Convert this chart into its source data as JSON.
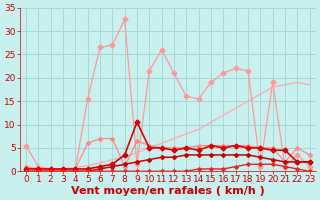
{
  "title": "",
  "xlabel": "Vent moyen/en rafales ( km/h )",
  "ylabel": "",
  "bg_color": "#c8f0ee",
  "grid_color": "#a8d8d4",
  "xlim": [
    -0.5,
    23.5
  ],
  "ylim": [
    0,
    35
  ],
  "xticks": [
    0,
    1,
    2,
    3,
    4,
    5,
    6,
    7,
    8,
    9,
    10,
    11,
    12,
    13,
    14,
    15,
    16,
    17,
    18,
    19,
    20,
    21,
    22,
    23
  ],
  "yticks": [
    0,
    5,
    10,
    15,
    20,
    25,
    30,
    35
  ],
  "series": [
    {
      "x": [
        0,
        1,
        2,
        3,
        4,
        5,
        6,
        7,
        8,
        9,
        10,
        11,
        12,
        13,
        14,
        15,
        16,
        17,
        18,
        19,
        20,
        21,
        22,
        23
      ],
      "y": [
        5.5,
        1.0,
        0.5,
        0.5,
        0.5,
        15.5,
        26.5,
        27.0,
        32.5,
        1.5,
        21.5,
        26.0,
        21.0,
        16.0,
        15.5,
        19.0,
        21.0,
        22.0,
        21.5,
        1.0,
        19.0,
        1.0,
        3.5,
        1.0
      ],
      "color": "#ff9999",
      "lw": 0.9,
      "marker": "D",
      "ms": 2.5,
      "zorder": 3
    },
    {
      "x": [
        0,
        1,
        2,
        3,
        4,
        5,
        6,
        7,
        8,
        9,
        10,
        11,
        12,
        13,
        14,
        15,
        16,
        17,
        18,
        19,
        20,
        21,
        22,
        23
      ],
      "y": [
        0.0,
        0.0,
        0.2,
        0.5,
        0.8,
        1.2,
        1.8,
        2.5,
        3.0,
        4.0,
        5.0,
        6.0,
        7.0,
        8.0,
        9.0,
        10.5,
        12.0,
        13.5,
        15.0,
        16.5,
        18.0,
        18.5,
        19.0,
        18.5
      ],
      "color": "#ffaaaa",
      "lw": 0.9,
      "marker": null,
      "ms": 0,
      "zorder": 2
    },
    {
      "x": [
        0,
        1,
        2,
        3,
        4,
        5,
        6,
        7,
        8,
        9,
        10,
        11,
        12,
        13,
        14,
        15,
        16,
        17,
        18,
        19,
        20,
        21,
        22,
        23
      ],
      "y": [
        1.0,
        0.5,
        0.5,
        0.5,
        0.5,
        6.0,
        7.0,
        7.0,
        1.0,
        6.5,
        5.5,
        5.0,
        5.0,
        5.0,
        5.5,
        5.5,
        5.5,
        5.5,
        5.5,
        5.0,
        5.0,
        2.0,
        5.0,
        3.5
      ],
      "color": "#ff8888",
      "lw": 0.9,
      "marker": "D",
      "ms": 2.0,
      "zorder": 3
    },
    {
      "x": [
        0,
        1,
        2,
        3,
        4,
        5,
        6,
        7,
        8,
        9,
        10,
        11,
        12,
        13,
        14,
        15,
        16,
        17,
        18,
        19,
        20,
        21,
        22,
        23
      ],
      "y": [
        0.5,
        0.5,
        0.5,
        0.5,
        0.5,
        0.5,
        1.0,
        1.5,
        3.5,
        10.5,
        5.0,
        5.0,
        4.5,
        5.0,
        4.5,
        5.5,
        5.0,
        5.5,
        5.0,
        5.0,
        4.5,
        4.5,
        2.0,
        2.0
      ],
      "color": "#dd0000",
      "lw": 1.2,
      "marker": "D",
      "ms": 2.5,
      "zorder": 4
    },
    {
      "x": [
        0,
        1,
        2,
        3,
        4,
        5,
        6,
        7,
        8,
        9,
        10,
        11,
        12,
        13,
        14,
        15,
        16,
        17,
        18,
        19,
        20,
        21,
        22,
        23
      ],
      "y": [
        0.0,
        0.0,
        0.0,
        0.0,
        0.0,
        0.0,
        0.5,
        1.0,
        1.5,
        2.0,
        2.5,
        3.0,
        3.0,
        3.5,
        3.5,
        3.5,
        3.5,
        3.5,
        3.5,
        3.0,
        2.5,
        2.0,
        2.0,
        2.0
      ],
      "color": "#cc0000",
      "lw": 1.1,
      "marker": "D",
      "ms": 2.0,
      "zorder": 4
    },
    {
      "x": [
        0,
        1,
        2,
        3,
        4,
        5,
        6,
        7,
        8,
        9,
        10,
        11,
        12,
        13,
        14,
        15,
        16,
        17,
        18,
        19,
        20,
        21,
        22,
        23
      ],
      "y": [
        0.0,
        0.0,
        0.0,
        0.0,
        0.0,
        0.0,
        0.0,
        0.0,
        0.0,
        0.0,
        0.0,
        0.0,
        0.0,
        0.0,
        0.5,
        0.5,
        0.5,
        1.0,
        1.5,
        1.5,
        1.5,
        1.0,
        0.5,
        0.0
      ],
      "color": "#ee2222",
      "lw": 1.0,
      "marker": "D",
      "ms": 1.8,
      "zorder": 4
    }
  ],
  "arrow_color": "#cc2222",
  "xlabel_color": "#cc0000",
  "xlabel_fontsize": 8,
  "tick_color": "#cc0000",
  "tick_fontsize": 6.5
}
